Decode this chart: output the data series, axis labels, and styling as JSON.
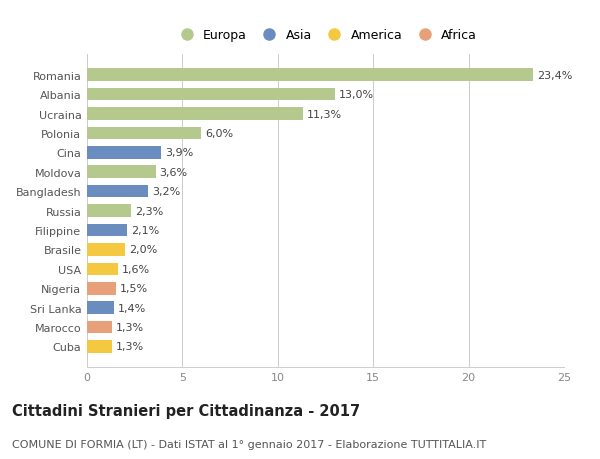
{
  "countries": [
    "Romania",
    "Albania",
    "Ucraina",
    "Polonia",
    "Cina",
    "Moldova",
    "Bangladesh",
    "Russia",
    "Filippine",
    "Brasile",
    "USA",
    "Nigeria",
    "Sri Lanka",
    "Marocco",
    "Cuba"
  ],
  "values": [
    23.4,
    13.0,
    11.3,
    6.0,
    3.9,
    3.6,
    3.2,
    2.3,
    2.1,
    2.0,
    1.6,
    1.5,
    1.4,
    1.3,
    1.3
  ],
  "labels": [
    "23,4%",
    "13,0%",
    "11,3%",
    "6,0%",
    "3,9%",
    "3,6%",
    "3,2%",
    "2,3%",
    "2,1%",
    "2,0%",
    "1,6%",
    "1,5%",
    "1,4%",
    "1,3%",
    "1,3%"
  ],
  "continents": [
    "Europa",
    "Europa",
    "Europa",
    "Europa",
    "Asia",
    "Europa",
    "Asia",
    "Europa",
    "Asia",
    "America",
    "America",
    "Africa",
    "Asia",
    "Africa",
    "America"
  ],
  "continent_colors": {
    "Europa": "#b5c98e",
    "Asia": "#6b8cbe",
    "America": "#f5c842",
    "Africa": "#e8a07a"
  },
  "legend_order": [
    "Europa",
    "Asia",
    "America",
    "Africa"
  ],
  "xlim": [
    0,
    25
  ],
  "xticks": [
    0,
    5,
    10,
    15,
    20,
    25
  ],
  "title": "Cittadini Stranieri per Cittadinanza - 2017",
  "subtitle": "COMUNE DI FORMIA (LT) - Dati ISTAT al 1° gennaio 2017 - Elaborazione TUTTITALIA.IT",
  "title_fontsize": 10.5,
  "subtitle_fontsize": 8,
  "background_color": "#ffffff",
  "grid_color": "#cccccc",
  "bar_height": 0.65,
  "label_fontsize": 8,
  "tick_fontsize": 8
}
